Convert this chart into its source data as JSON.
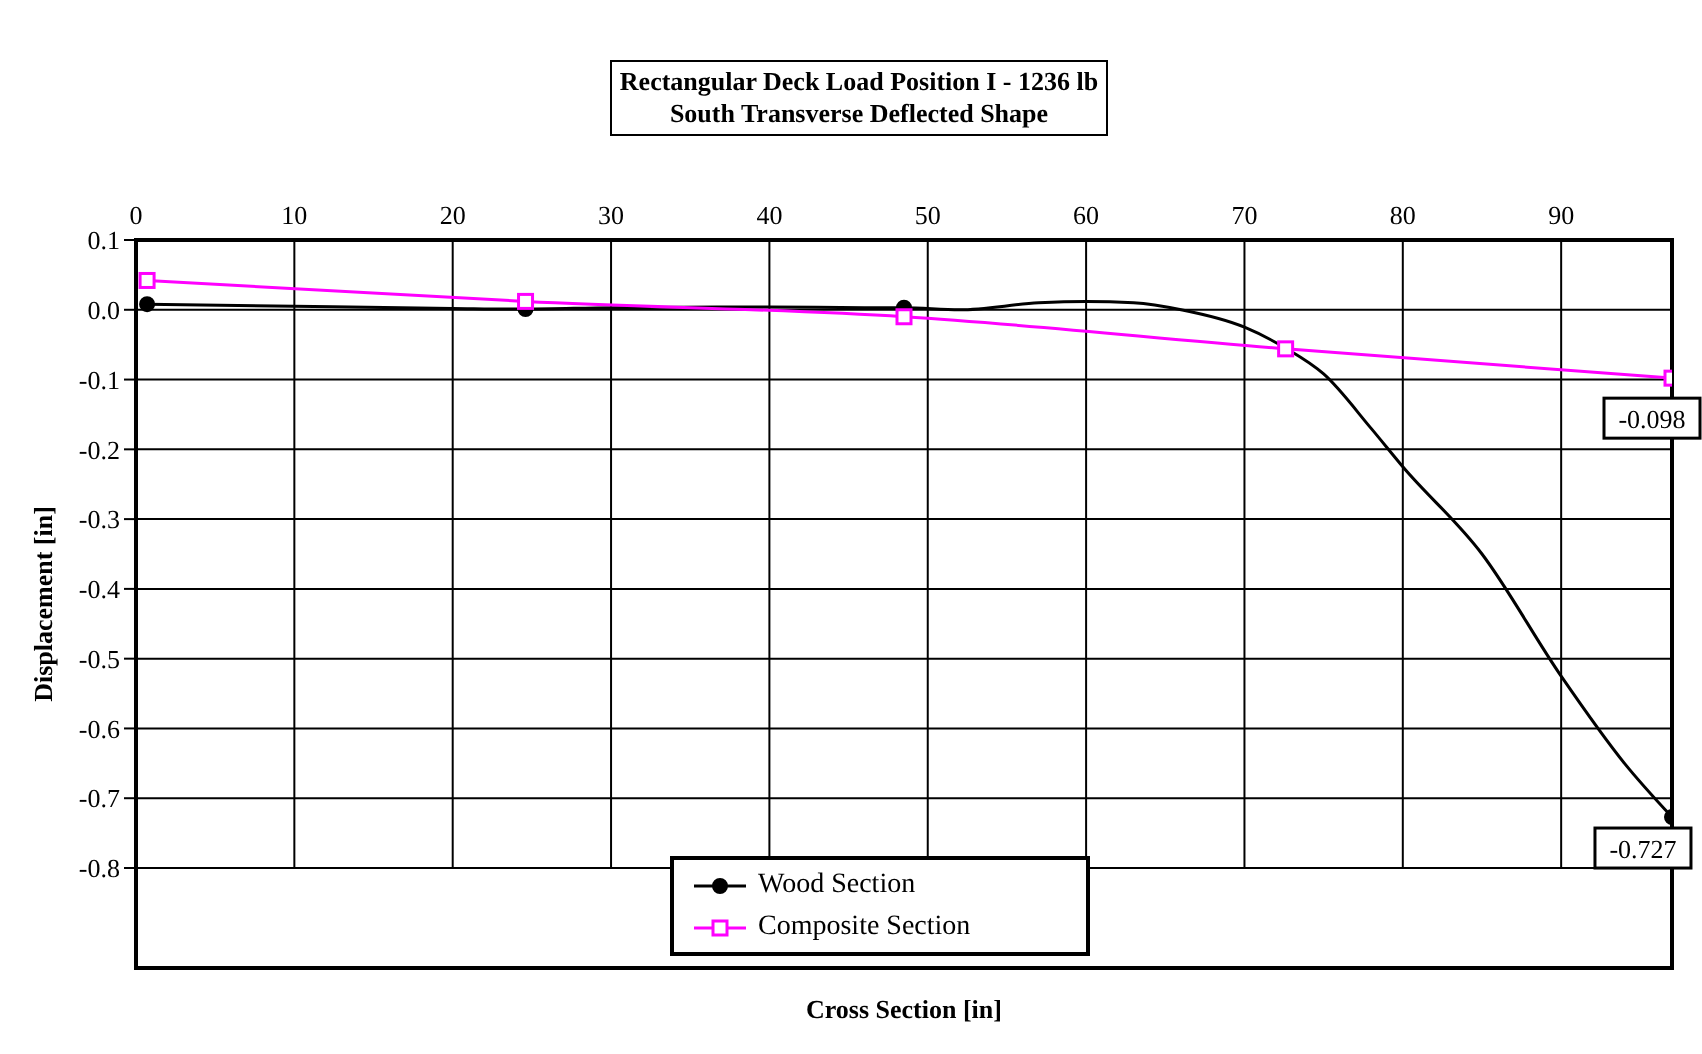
{
  "chart_data": {
    "type": "line",
    "title": "Rectangular Deck Load Position I - 1236 lb\nSouth Transverse Deflected Shape",
    "xlabel": "Cross Section [in]",
    "ylabel": "Displacement [in]",
    "xlim": [
      0,
      97
    ],
    "xticks": [
      0,
      10,
      20,
      30,
      40,
      50,
      60,
      70,
      80,
      90
    ],
    "ylim": [
      -0.8,
      0.1
    ],
    "yticks": [
      0.1,
      {
        "value": 0,
        "label": "0.0"
      },
      -0.1,
      -0.2,
      -0.3,
      -0.4,
      -0.5,
      -0.6,
      -0.7,
      -0.8
    ],
    "grid": true,
    "legend": "bottom",
    "line_style": "solid",
    "series": [
      {
        "color": "#000000",
        "marker": "none",
        "x": [
          0.7,
          10,
          20,
          24.6,
          30,
          40,
          46,
          48.5,
          52,
          57,
          60,
          63,
          66,
          70,
          72.6,
          75,
          78,
          80,
          85,
          90,
          94,
          97
        ],
        "values": [
          0.008,
          0.005,
          0.002,
          0.001,
          0.003,
          0.004,
          0.003,
          0.003,
          0.0,
          0.01,
          0.012,
          0.01,
          0.0,
          -0.025,
          -0.055,
          -0.092,
          -0.17,
          -0.225,
          -0.35,
          -0.525,
          -0.65,
          -0.727
        ]
      },
      {
        "name": "Wood Section",
        "type": "scatter",
        "color": "#000000",
        "marker": "circle",
        "x": [
          0.7,
          24.6,
          48.5,
          72.6,
          97
        ],
        "values": [
          0.008,
          0.001,
          0.003,
          null,
          -0.727
        ],
        "value_labels": [
          null,
          null,
          null,
          null,
          "-0.727"
        ]
      },
      {
        "name": "Composite Section",
        "color": "#ff00ff",
        "marker": "square",
        "x": [
          0.7,
          24.6,
          48.5,
          72.6,
          97
        ],
        "values": [
          0.042,
          0.012,
          -0.01,
          -0.056,
          -0.098
        ],
        "value_labels": [
          null,
          null,
          null,
          null,
          "-0.098"
        ]
      }
    ]
  }
}
